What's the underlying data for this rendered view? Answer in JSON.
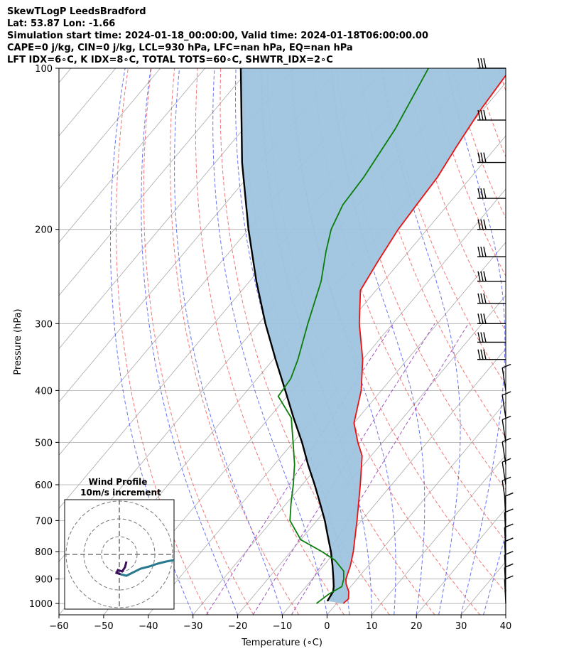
{
  "header": {
    "line1": "SkewTLogP LeedsBradford",
    "line2": "Lat: 53.87   Lon: -1.66",
    "line3": "Simulation start time: 2024-01-18_00:00:00, Valid time: 2024-01-18T06:00:00.00",
    "line4": "CAPE=0 j/kg, CIN=0 j/kg, LCL=930 hPa, LFC=nan hPa, EQ=nan hPa",
    "line5": "LFT IDX=6∘C, K IDX=8∘C, TOTAL TOTS=60∘C, SHWTR_IDX=2∘C"
  },
  "chart_data": {
    "type": "line",
    "xlabel": "Temperature (∘C)",
    "ylabel": "Pressure (hPa)",
    "x_ticks": [
      -60,
      -50,
      -40,
      -30,
      -20,
      -10,
      0,
      10,
      20,
      30,
      40
    ],
    "y_ticks": [
      100,
      200,
      300,
      400,
      500,
      600,
      700,
      800,
      900,
      1000
    ],
    "xlim": [
      -60,
      40
    ],
    "ylim": [
      1050,
      100
    ],
    "y_scale": "log",
    "skew": true,
    "grid": true,
    "colors": {
      "temperature": "#ee1111",
      "dewpoint": "#0a7d0a",
      "parcel": "#000000",
      "shading": "#9ec4de",
      "dry_adiabats": "#f06060",
      "moist_adiabats": "#4d5cf0",
      "mixing_ratio": "#9944bb"
    },
    "series": [
      {
        "id": "temperature",
        "points": [
          [
            1000,
            1.5
          ],
          [
            980,
            1.8
          ],
          [
            950,
            0.5
          ],
          [
            920,
            -1.5
          ],
          [
            900,
            -2.5
          ],
          [
            850,
            -4.0
          ],
          [
            800,
            -6.0
          ],
          [
            700,
            -11.0
          ],
          [
            600,
            -17.0
          ],
          [
            530,
            -22.0
          ],
          [
            500,
            -25.5
          ],
          [
            460,
            -30.0
          ],
          [
            400,
            -34.5
          ],
          [
            350,
            -40.0
          ],
          [
            300,
            -47.5
          ],
          [
            260,
            -53.5
          ],
          [
            230,
            -55.0
          ],
          [
            200,
            -56.5
          ],
          [
            180,
            -57.0
          ],
          [
            160,
            -57.5
          ],
          [
            140,
            -59.0
          ],
          [
            120,
            -60.5
          ],
          [
            100,
            -61.5
          ]
        ]
      },
      {
        "id": "dewpoint",
        "points": [
          [
            1000,
            -4.5
          ],
          [
            960,
            -3.5
          ],
          [
            930,
            -2.0
          ],
          [
            900,
            -3.0
          ],
          [
            870,
            -4.5
          ],
          [
            830,
            -8.5
          ],
          [
            800,
            -13.0
          ],
          [
            760,
            -20.0
          ],
          [
            700,
            -26.0
          ],
          [
            650,
            -29.0
          ],
          [
            600,
            -32.0
          ],
          [
            550,
            -35.5
          ],
          [
            500,
            -40.0
          ],
          [
            450,
            -45.0
          ],
          [
            410,
            -52.0
          ],
          [
            380,
            -52.5
          ],
          [
            350,
            -54.5
          ],
          [
            300,
            -59.0
          ],
          [
            250,
            -64.0
          ],
          [
            220,
            -68.5
          ],
          [
            200,
            -71.5
          ],
          [
            180,
            -73.5
          ],
          [
            160,
            -74.0
          ],
          [
            130,
            -76.0
          ],
          [
            100,
            -80.0
          ]
        ]
      },
      {
        "id": "parcel",
        "points": [
          [
            990,
            -2.5
          ],
          [
            950,
            -3.0
          ],
          [
            930,
            -3.8
          ],
          [
            900,
            -5.3
          ],
          [
            850,
            -8.0
          ],
          [
            800,
            -11.0
          ],
          [
            750,
            -14.5
          ],
          [
            700,
            -18.2
          ],
          [
            650,
            -22.5
          ],
          [
            600,
            -27.2
          ],
          [
            550,
            -32.5
          ],
          [
            500,
            -38.0
          ],
          [
            450,
            -44.5
          ],
          [
            400,
            -51.5
          ],
          [
            350,
            -59.5
          ],
          [
            300,
            -68.5
          ],
          [
            250,
            -78.5
          ],
          [
            200,
            -90.0
          ],
          [
            150,
            -104.0
          ],
          [
            100,
            -122.0
          ]
        ]
      }
    ],
    "wind_barbs": [
      100,
      125,
      150,
      175,
      200,
      225,
      250,
      275,
      300,
      325,
      350,
      400,
      450,
      500,
      550,
      600,
      650,
      700,
      750,
      800,
      850,
      900,
      950,
      1000
    ],
    "hodograph": {
      "title": "Wind Profile",
      "subtitle": "10m/s increment",
      "line_colors": [
        "#3b0f5e",
        "#2a788e",
        "#22a884"
      ]
    }
  }
}
